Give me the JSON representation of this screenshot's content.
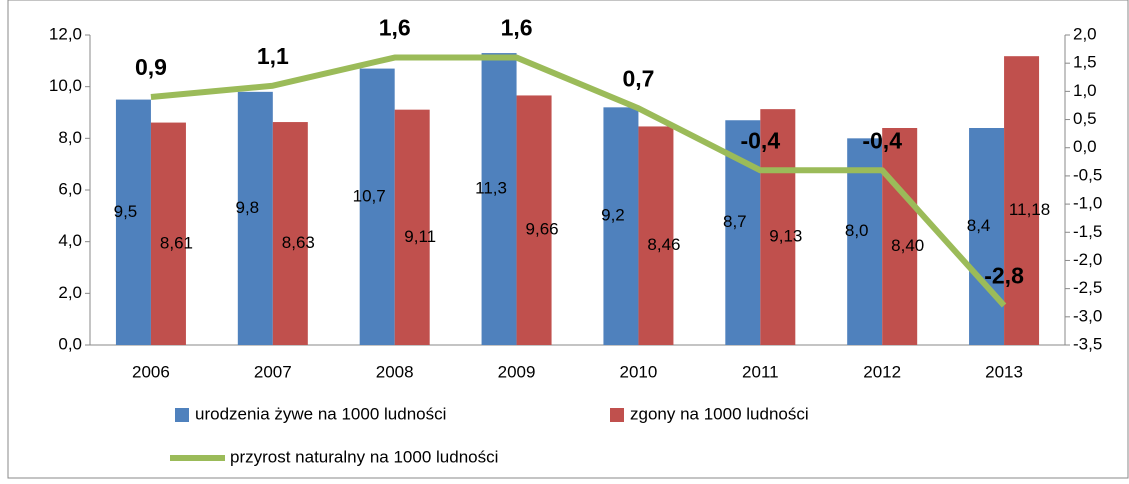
{
  "chart_data": {
    "type": "bar",
    "categories": [
      "2006",
      "2007",
      "2008",
      "2009",
      "2010",
      "2011",
      "2012",
      "2013"
    ],
    "series": [
      {
        "name": "urodzenia żywe na 1000 ludności",
        "color": "#4f81bd",
        "type": "bar",
        "values": [
          9.5,
          9.8,
          10.7,
          11.3,
          9.2,
          8.7,
          8.0,
          8.4
        ],
        "value_labels": [
          "9,5",
          "9,8",
          "10,7",
          "11,3",
          "9,2",
          "8,7",
          "8,0",
          "8,4"
        ]
      },
      {
        "name": "zgony na 1000 ludności",
        "color": "#c0504d",
        "type": "bar",
        "values": [
          8.61,
          8.63,
          9.11,
          9.66,
          8.46,
          9.13,
          8.4,
          11.18
        ],
        "value_labels": [
          "8,61",
          "8,63",
          "9,11",
          "9,66",
          "8,46",
          "9,13",
          "8,40",
          "11,18"
        ]
      },
      {
        "name": "przyrost naturalny na 1000 ludności",
        "color": "#9bbb59",
        "type": "line",
        "axis": "y2",
        "values": [
          0.9,
          1.1,
          1.6,
          1.6,
          0.7,
          -0.4,
          -0.4,
          -2.8
        ],
        "value_labels": [
          "0,9",
          "1,1",
          "1,6",
          "1,6",
          "0,7",
          "-0,4",
          "-0,4",
          "-2,8"
        ]
      }
    ],
    "ylim": [
      0,
      12
    ],
    "yticks": [
      {
        "value": 0,
        "label": "0,0"
      },
      {
        "value": 2,
        "label": "2,0"
      },
      {
        "value": 4,
        "label": "4,0"
      },
      {
        "value": 6,
        "label": "6,0"
      },
      {
        "value": 8,
        "label": "8,0"
      },
      {
        "value": 10,
        "label": "10,0"
      },
      {
        "value": 12,
        "label": "12,0"
      }
    ],
    "y2lim": [
      -3.5,
      2.0
    ],
    "y2ticks": [
      {
        "value": -3.5,
        "label": "-3,5"
      },
      {
        "value": -3,
        "label": "-3,0"
      },
      {
        "value": -2.5,
        "label": "-2,5"
      },
      {
        "value": -2,
        "label": "-2,0"
      },
      {
        "value": -1.5,
        "label": "-1,5"
      },
      {
        "value": -1,
        "label": "-1,0"
      },
      {
        "value": -0.5,
        "label": "-0,5"
      },
      {
        "value": 0,
        "label": "0,0"
      },
      {
        "value": 0.5,
        "label": "0,5"
      },
      {
        "value": 1,
        "label": "1,0"
      },
      {
        "value": 1.5,
        "label": "1,5"
      },
      {
        "value": 2,
        "label": "2,0"
      }
    ],
    "legend": "bottom"
  }
}
